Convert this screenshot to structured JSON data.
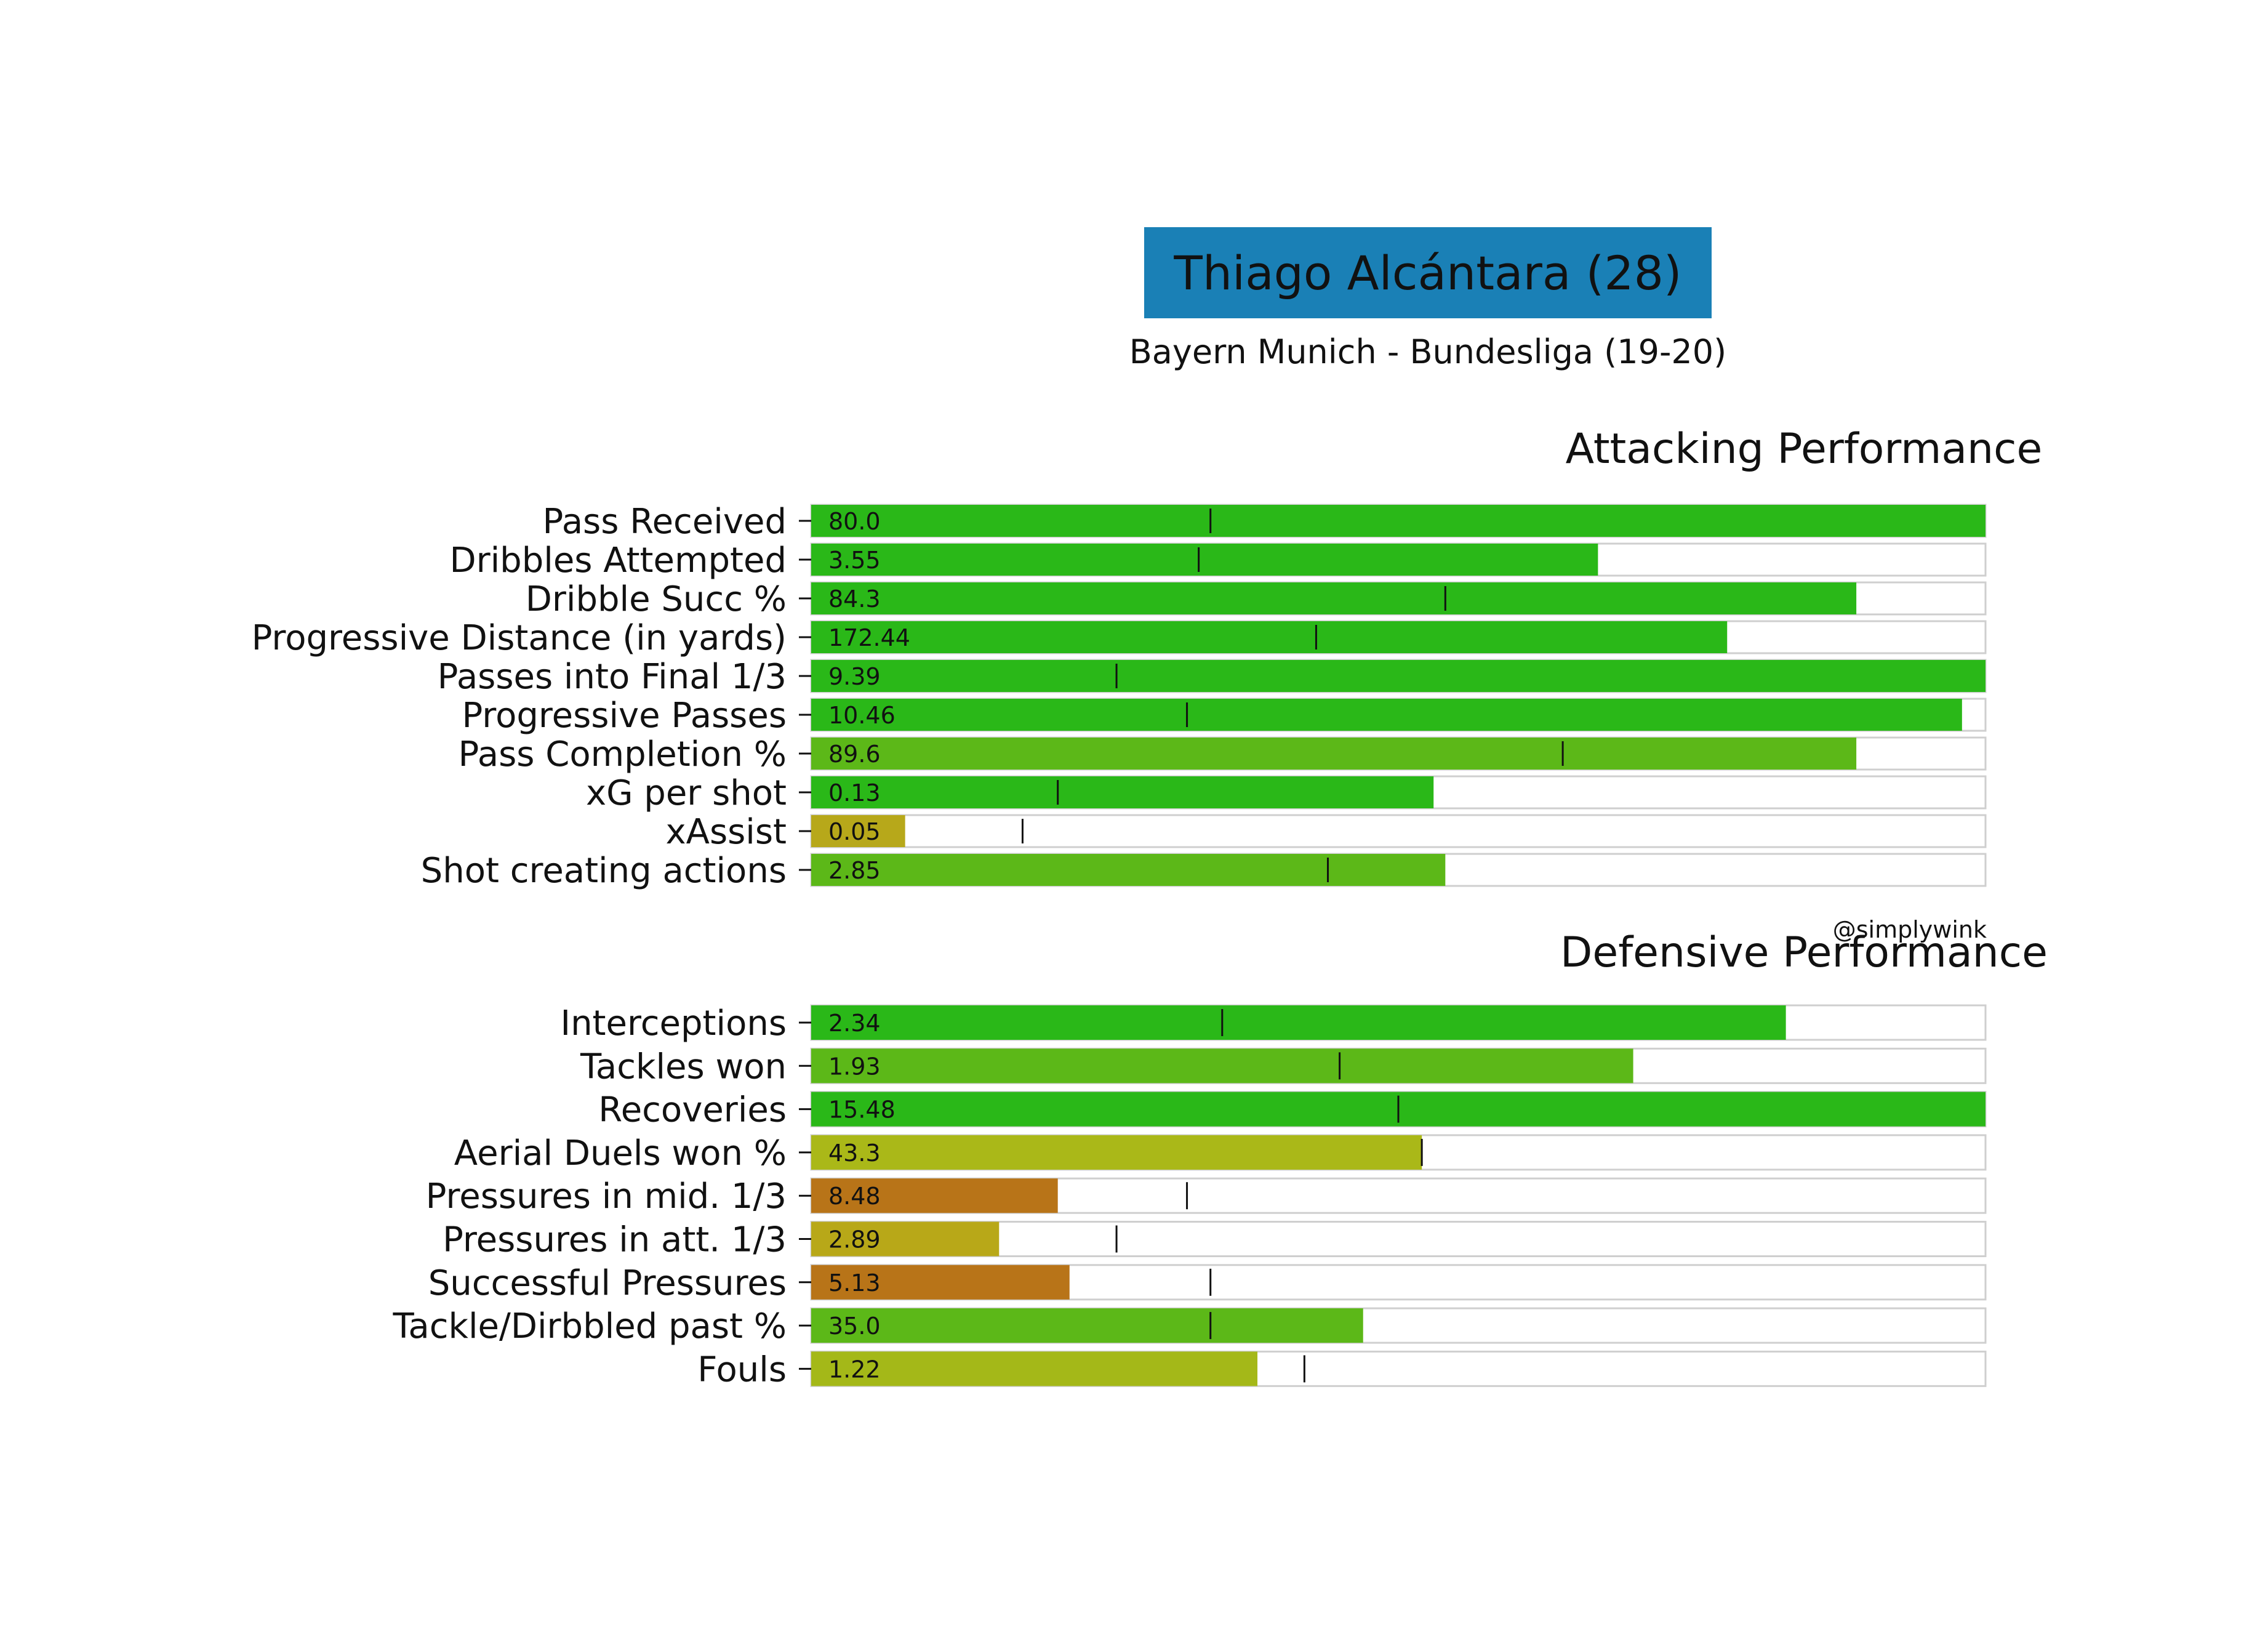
{
  "header": {
    "title": "Thiago Alcántara (28)",
    "title_bg": "#1a80b6",
    "subtitle": "Bayern Munich - Bundesliga (19-20)"
  },
  "credit": "@simplywink",
  "chart_data": [
    {
      "type": "bar",
      "orientation": "horizontal",
      "title": "Attacking Performance",
      "xlim": [
        0,
        1
      ],
      "grid": false,
      "categories": [
        "Pass Received",
        "Dribbles Attempted",
        "Dribble Succ %",
        "Progressive Distance (in yards)",
        "Passes into Final 1/3",
        "Progressive Passes",
        "Pass Completion %",
        "xG per shot",
        "xAssist",
        "Shot creating actions"
      ],
      "value_labels": [
        "80.0",
        "3.55",
        "84.3",
        "172.44",
        "9.39",
        "10.46",
        "89.6",
        "0.13",
        "0.05",
        "2.85"
      ],
      "fill_fraction": [
        1.0,
        0.67,
        0.89,
        0.78,
        1.0,
        0.98,
        0.89,
        0.53,
        0.08,
        0.54
      ],
      "benchmark_fraction": [
        0.34,
        0.33,
        0.54,
        0.43,
        0.26,
        0.32,
        0.64,
        0.21,
        0.18,
        0.44
      ],
      "colors": [
        "#2ab818",
        "#2ab818",
        "#2ab818",
        "#2ab818",
        "#2ab818",
        "#2ab818",
        "#5cb818",
        "#2ab818",
        "#b7a81a",
        "#5cb818"
      ]
    },
    {
      "type": "bar",
      "orientation": "horizontal",
      "title": "Defensive Performance",
      "xlim": [
        0,
        1
      ],
      "grid": false,
      "categories": [
        "Interceptions",
        "Tackles won",
        "Recoveries",
        "Aerial Duels won %",
        "Pressures in mid. 1/3",
        "Pressures in att. 1/3",
        "Successful Pressures",
        "Tackle/Dirbbled past %",
        "Fouls"
      ],
      "value_labels": [
        "2.34",
        "1.93",
        "15.48",
        "43.3",
        "8.48",
        "2.89",
        "5.13",
        "35.0",
        "1.22"
      ],
      "fill_fraction": [
        0.83,
        0.7,
        1.0,
        0.52,
        0.21,
        0.16,
        0.22,
        0.47,
        0.38
      ],
      "benchmark_fraction": [
        0.35,
        0.45,
        0.5,
        0.52,
        0.32,
        0.26,
        0.34,
        0.34,
        0.42
      ],
      "colors": [
        "#2ab818",
        "#5cb818",
        "#2ab818",
        "#aab818",
        "#b87418",
        "#b8a818",
        "#b87418",
        "#5cb818",
        "#a4b818"
      ]
    }
  ]
}
